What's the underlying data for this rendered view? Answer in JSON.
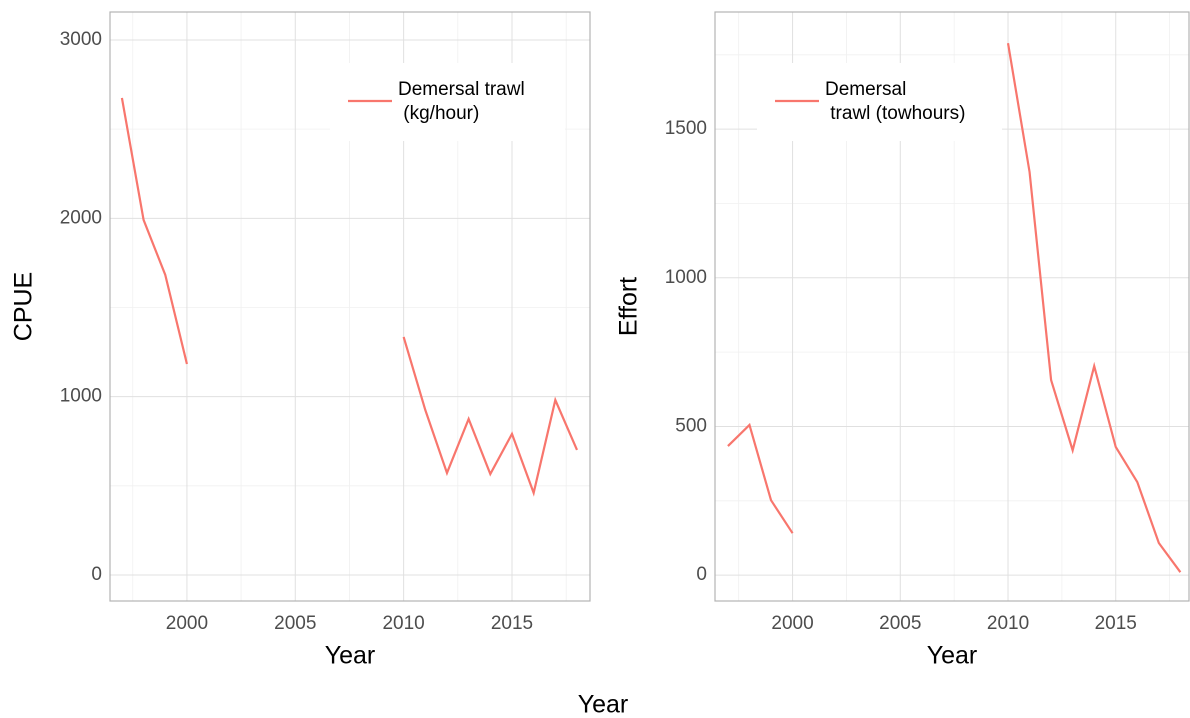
{
  "chart_data": [
    {
      "type": "line",
      "xlabel": "Year",
      "ylabel": "CPUE",
      "x": [
        1997,
        1998,
        1999,
        2000,
        2001,
        2002,
        2003,
        2004,
        2005,
        2006,
        2007,
        2008,
        2009,
        2010,
        2011,
        2012,
        2013,
        2014,
        2015,
        2016,
        2017,
        2018
      ],
      "series": [
        {
          "name": "Demersal trawl\n (kg/hour)",
          "color": "#F8766D",
          "values": [
            2675,
            1991,
            1683,
            1183,
            null,
            null,
            null,
            null,
            null,
            null,
            null,
            null,
            null,
            1335,
            925,
            572,
            875,
            566,
            791,
            460,
            981,
            701
          ]
        }
      ],
      "xlim": [
        1996.45,
        2018.6
      ],
      "xticks": [
        2000,
        2005,
        2010,
        2015
      ],
      "xminor": [
        1997.5,
        2002.5,
        2007.5,
        2012.5,
        2017.5
      ],
      "ylim": [
        -146,
        3157
      ],
      "yticks": [
        0,
        1000,
        2000,
        3000
      ],
      "yminor": [
        500,
        1500,
        2500
      ],
      "grid": true
    },
    {
      "type": "line",
      "xlabel": "Year",
      "ylabel": "Effort",
      "x": [
        1997,
        1998,
        1999,
        2000,
        2001,
        2002,
        2003,
        2004,
        2005,
        2006,
        2007,
        2008,
        2009,
        2010,
        2011,
        2012,
        2013,
        2014,
        2015,
        2016,
        2017,
        2018
      ],
      "series": [
        {
          "name": "Demersal\n trawl (towhours)",
          "color": "#F8766D",
          "values": [
            434,
            505,
            252,
            141,
            null,
            null,
            null,
            null,
            null,
            null,
            null,
            null,
            null,
            1789,
            1356,
            656,
            420,
            703,
            431,
            313,
            108,
            10
          ]
        }
      ],
      "xlim": [
        1996.4,
        2018.4
      ],
      "xticks": [
        2000,
        2005,
        2010,
        2015
      ],
      "xminor": [
        1997.5,
        2002.5,
        2007.5,
        2012.5,
        2017.5
      ],
      "ylim": [
        -87,
        1894
      ],
      "yticks": [
        0,
        500,
        1000,
        1500
      ],
      "yminor": [
        250,
        750,
        1250,
        1750
      ],
      "grid": true
    }
  ],
  "caption": "Year"
}
